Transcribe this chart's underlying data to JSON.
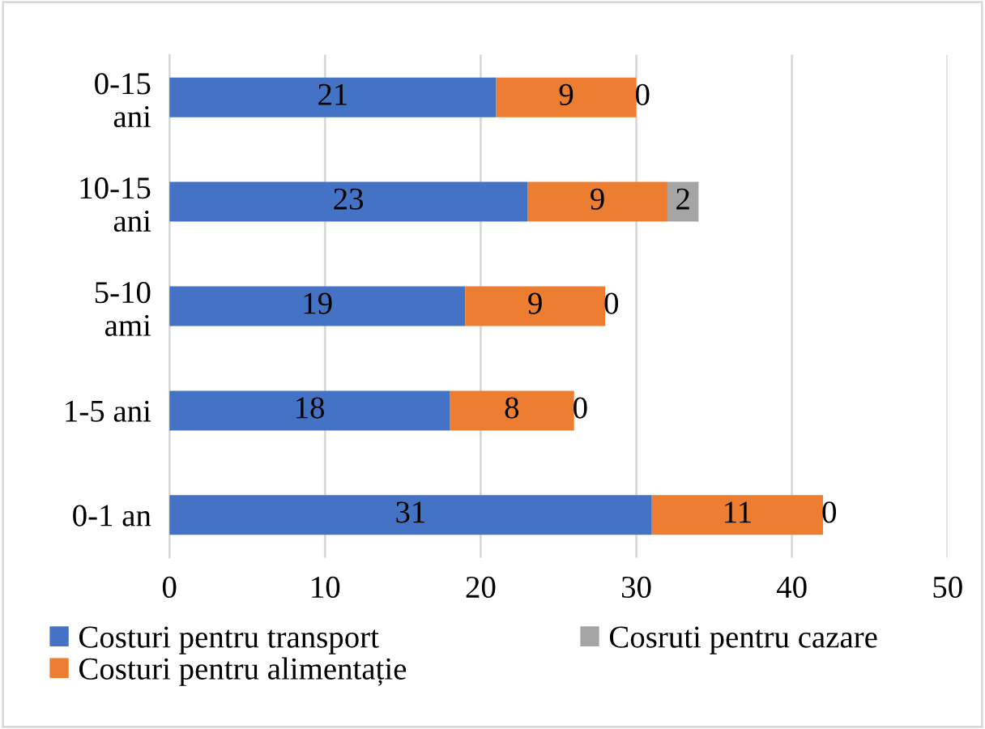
{
  "chart_data": {
    "type": "bar",
    "orientation": "horizontal",
    "stacked": true,
    "data_labels": true,
    "grid": "x",
    "legend": "bottom",
    "categories": [
      "0-15 ani",
      "10-15 ani",
      "5-10 ami",
      "1-5 ani",
      "0-1 an"
    ],
    "series": [
      {
        "name": "Costuri pentru transport",
        "color": "#4472c4",
        "values": [
          21,
          23,
          19,
          18,
          31
        ]
      },
      {
        "name": "Costuri pentru alimentație",
        "color": "#ed7d31",
        "values": [
          9,
          9,
          9,
          8,
          11
        ]
      },
      {
        "name": "Cosruti pentru cazare",
        "color": "#a5a5a5",
        "values": [
          0,
          2,
          0,
          0,
          0
        ]
      }
    ],
    "xlim": [
      0,
      50
    ],
    "xticks": [
      0,
      10,
      20,
      30,
      40,
      50
    ]
  }
}
